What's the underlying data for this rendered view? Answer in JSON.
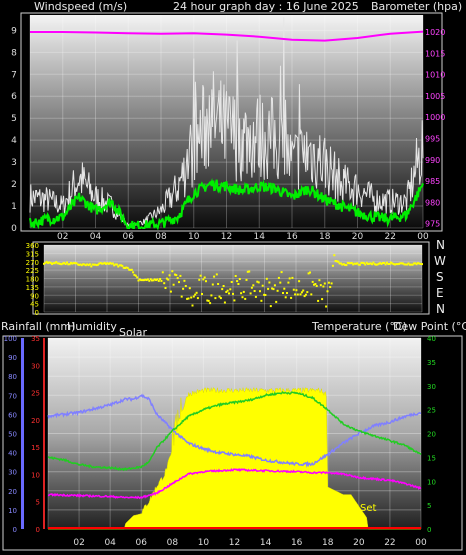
{
  "header": {
    "left": "Windspeed (m/s)",
    "center": "24 hour graph day : 16 June 2025",
    "right": "Barometer (hpa)"
  },
  "middle_header": {
    "rainfall": "Rainfall (mm)",
    "humidity": "Humidity",
    "solar": "Solar",
    "temperature": "Temperature (°C)",
    "dew_point": "Dew Point (°C)"
  },
  "set_label": "Set",
  "compass": [
    "N",
    "W",
    "S",
    "E",
    "N"
  ],
  "colors": {
    "wind_gust": "#e6e6e6",
    "wind_avg": "#00ee00",
    "barometer": "#ff00ff",
    "direction": "#ffff00",
    "temperature": "#22cc22",
    "humidity": "#8080ff",
    "dew_point": "#ff00ff",
    "solar": "#ffff00",
    "rainfall": "#ff0000"
  },
  "chart_data": [
    {
      "type": "line",
      "x_ticks": [
        "02",
        "04",
        "06",
        "08",
        "10",
        "12",
        "14",
        "16",
        "18",
        "20",
        "22",
        "00"
      ],
      "y_left_ticks": [
        0,
        1,
        2,
        3,
        4,
        5,
        6,
        7,
        8,
        9
      ],
      "y_left_range": [
        0,
        9.7
      ],
      "y_right_ticks": [
        975,
        980,
        985,
        990,
        995,
        1000,
        1005,
        1010,
        1015,
        1020
      ],
      "y_right_range": [
        974,
        1024
      ],
      "series": [
        {
          "x": [
            0,
            1,
            2,
            3,
            4,
            5,
            6,
            7,
            8,
            9,
            10,
            11,
            12,
            13,
            14,
            15,
            16,
            17,
            18,
            19,
            20,
            21,
            22,
            23,
            24
          ],
          "values": [
            1.4,
            1.3,
            1.0,
            2.3,
            1.4,
            1.0,
            0.1,
            0.3,
            0.8,
            1.8,
            3.7,
            5.0,
            4.4,
            4.1,
            4.2,
            4.0,
            3.0,
            3.5,
            3.0,
            2.0,
            1.8,
            1.3,
            1.2,
            1.2,
            3.8
          ]
        },
        {
          "x": [
            0,
            1,
            2,
            3,
            4,
            5,
            6,
            7,
            8,
            9,
            10,
            11,
            12,
            13,
            14,
            15,
            16,
            17,
            18,
            19,
            20,
            21,
            22,
            23,
            24
          ],
          "values": [
            0.2,
            0.4,
            0.5,
            1.4,
            0.8,
            1.2,
            0.1,
            0.1,
            0.2,
            0.5,
            1.6,
            2.0,
            1.9,
            1.7,
            1.9,
            1.8,
            1.4,
            1.8,
            1.3,
            1.0,
            0.7,
            0.5,
            0.4,
            0.6,
            2.0
          ]
        },
        {
          "x": [
            0,
            2,
            4,
            6,
            8,
            10,
            12,
            14,
            16,
            18,
            20,
            22,
            24
          ],
          "values": [
            1020.0,
            1020.0,
            1019.9,
            1019.7,
            1019.6,
            1019.7,
            1019.4,
            1018.9,
            1018.2,
            1018.0,
            1018.6,
            1019.6,
            1020.1
          ]
        }
      ]
    },
    {
      "type": "scatter",
      "y_ticks": [
        0,
        45,
        90,
        135,
        180,
        225,
        270,
        315,
        360
      ],
      "y_range": [
        0,
        360
      ],
      "series": [
        {
          "x": [
            0,
            1,
            2,
            3,
            4,
            5,
            5.5,
            6,
            6.5,
            7,
            7.5,
            8,
            8.5,
            9,
            9.5,
            10,
            10.5,
            11,
            11.5,
            12,
            12.5,
            13,
            13.5,
            14,
            14.5,
            15,
            15.5,
            16,
            16.5,
            17,
            17.5,
            18,
            18.5,
            19,
            20,
            21,
            22,
            23,
            24
          ],
          "values": [
            265,
            262,
            258,
            250,
            262,
            245,
            230,
            175,
            172,
            170,
            172,
            168,
            155,
            110,
            60,
            140,
            95,
            155,
            120,
            135,
            115,
            150,
            120,
            130,
            90,
            160,
            140,
            120,
            130,
            150,
            110,
            80,
            270,
            258,
            258,
            260,
            262,
            258,
            262
          ]
        }
      ]
    },
    {
      "type": "line",
      "y_left_ticks": [
        0,
        10,
        20,
        30,
        40,
        50,
        60,
        70,
        80,
        90,
        100
      ],
      "y_left_range": [
        0,
        100
      ],
      "y_red_ticks": [
        0,
        5,
        10,
        15,
        20,
        25,
        30,
        35
      ],
      "y_red_range": [
        0,
        35
      ],
      "y_right_ticks": [
        0,
        5,
        10,
        15,
        20,
        25,
        30,
        35,
        40
      ],
      "y_right_range": [
        0,
        40
      ],
      "series": [
        {
          "x": [
            0,
            1,
            2,
            3,
            4,
            5,
            5.5,
            6,
            6.5,
            7,
            8,
            9,
            10,
            11,
            12,
            13,
            14,
            15,
            16,
            17,
            18,
            19,
            20,
            21,
            22,
            23,
            24
          ],
          "values": [
            59,
            60,
            61,
            63,
            65,
            68,
            68,
            70,
            68,
            60,
            52,
            45,
            42,
            40,
            39,
            38,
            36,
            35,
            34,
            34,
            39,
            45,
            50,
            54,
            56,
            59,
            61
          ]
        },
        {
          "x": [
            0,
            1,
            2,
            3,
            4,
            5,
            6,
            6.5,
            7,
            8,
            9,
            10,
            11,
            12,
            13,
            14,
            15,
            16,
            17,
            18,
            19,
            20,
            21,
            22,
            23,
            24
          ],
          "values": [
            15,
            14.5,
            13.5,
            13,
            12.8,
            12.5,
            13,
            14,
            17,
            20.5,
            23.5,
            25,
            26,
            26.5,
            27,
            28,
            28.5,
            28.5,
            27.5,
            25,
            22,
            20.5,
            19.5,
            18.5,
            17.5,
            15.5
          ]
        },
        {
          "x": [
            0,
            1,
            2,
            3,
            4,
            5,
            6,
            7,
            8,
            9,
            10,
            11,
            12,
            13,
            14,
            15,
            16,
            17,
            18,
            19,
            20,
            21,
            22,
            23,
            24
          ],
          "values": [
            7.2,
            7.1,
            7.0,
            6.9,
            6.8,
            6.6,
            6.6,
            7.5,
            9.5,
            11.5,
            12,
            12.2,
            12.4,
            12.3,
            12.2,
            12.1,
            12.0,
            11.8,
            11.8,
            11.5,
            10.8,
            10.5,
            10.2,
            9.5,
            8.5
          ]
        },
        {
          "x": [
            0,
            4.9,
            5,
            5.5,
            6,
            6.5,
            7,
            7.5,
            8,
            8.5,
            9,
            10,
            11,
            12,
            13,
            14,
            15,
            16,
            17,
            17.5,
            17.9,
            18,
            18.5,
            19,
            19.5,
            20,
            20.5,
            20.6,
            24
          ],
          "values": [
            0,
            0,
            3,
            7,
            8,
            14,
            22,
            28,
            40,
            58,
            70,
            72,
            72,
            72,
            72,
            72,
            72,
            72,
            72,
            72,
            70,
            22,
            20,
            18,
            18,
            12,
            6,
            0,
            0
          ]
        }
      ]
    }
  ]
}
